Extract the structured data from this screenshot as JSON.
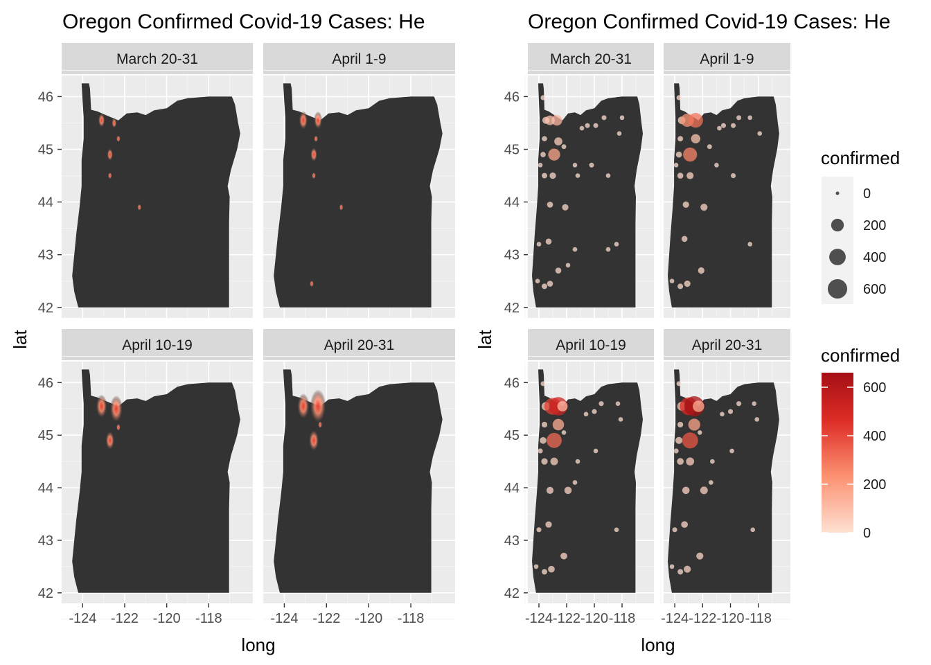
{
  "chart_data": [
    {
      "type": "heatmap",
      "title": "Oregon Confirmed Covid-19 Cases: He",
      "xlabel": "long",
      "ylabel": "lat",
      "xticks": [
        "-124",
        "-122",
        "-120",
        "-118"
      ],
      "yticks": [
        "42",
        "43",
        "44",
        "45",
        "46"
      ],
      "xlim": [
        -125.0,
        -115.9
      ],
      "ylim": [
        41.8,
        46.4
      ],
      "background_map": "Oregon",
      "panels": [
        {
          "label": "March 20-31",
          "hotspots": [
            {
              "long": -123.1,
              "lat": 45.55,
              "confirmed": 120
            },
            {
              "long": -122.5,
              "lat": 45.5,
              "confirmed": 60
            },
            {
              "long": -122.7,
              "lat": 44.9,
              "confirmed": 90
            },
            {
              "long": -122.3,
              "lat": 45.2,
              "confirmed": 25
            },
            {
              "long": -122.7,
              "lat": 44.5,
              "confirmed": 20
            },
            {
              "long": -121.3,
              "lat": 43.9,
              "confirmed": 8
            }
          ]
        },
        {
          "label": "April 1-9",
          "hotspots": [
            {
              "long": -123.1,
              "lat": 45.55,
              "confirmed": 200
            },
            {
              "long": -122.4,
              "lat": 45.55,
              "confirmed": 180
            },
            {
              "long": -122.6,
              "lat": 44.9,
              "confirmed": 120
            },
            {
              "long": -122.5,
              "lat": 45.2,
              "confirmed": 20
            },
            {
              "long": -122.6,
              "lat": 44.5,
              "confirmed": 15
            },
            {
              "long": -121.3,
              "lat": 43.9,
              "confirmed": 8
            },
            {
              "long": -122.7,
              "lat": 42.45,
              "confirmed": 8
            }
          ]
        },
        {
          "label": "April 10-19",
          "hotspots": [
            {
              "long": -123.1,
              "lat": 45.55,
              "confirmed": 320
            },
            {
              "long": -122.4,
              "lat": 45.5,
              "confirmed": 420
            },
            {
              "long": -122.7,
              "lat": 44.9,
              "confirmed": 200
            },
            {
              "long": -122.3,
              "lat": 45.15,
              "confirmed": 30
            }
          ]
        },
        {
          "label": "April 20-31",
          "hotspots": [
            {
              "long": -123.1,
              "lat": 45.55,
              "confirmed": 380
            },
            {
              "long": -122.4,
              "lat": 45.55,
              "confirmed": 650
            },
            {
              "long": -122.6,
              "lat": 44.9,
              "confirmed": 260
            },
            {
              "long": -122.3,
              "lat": 45.2,
              "confirmed": 30
            }
          ]
        }
      ]
    },
    {
      "type": "scatter",
      "title": "Oregon Confirmed Covid-19 Cases: He",
      "xlabel": "long",
      "ylabel": "lat",
      "xticks": [
        "-124",
        "-122",
        "-120",
        "-118"
      ],
      "yticks": [
        "42",
        "43",
        "44",
        "45",
        "46"
      ],
      "xlim": [
        -124.8,
        -115.7
      ],
      "ylim": [
        41.8,
        46.4
      ],
      "background_map": "Oregon",
      "size_legend": {
        "title": "confirmed",
        "levels": [
          {
            "value": 0,
            "label": "0"
          },
          {
            "value": 200,
            "label": "200"
          },
          {
            "value": 400,
            "label": "400"
          },
          {
            "value": 600,
            "label": "600"
          }
        ]
      },
      "color_legend": {
        "title": "confirmed",
        "low_color": "#fee0d2",
        "high_color": "#a50f15",
        "min": 0,
        "max": 660,
        "labels": [
          {
            "value": 600,
            "label": "600"
          },
          {
            "value": 400,
            "label": "400"
          },
          {
            "value": 200,
            "label": "200"
          },
          {
            "value": 0,
            "label": "0"
          }
        ]
      },
      "panels": [
        {
          "label": "March 20-31",
          "points": [
            {
              "long": -123.7,
              "lat": 45.98,
              "confirmed": 5
            },
            {
              "long": -123.5,
              "lat": 45.55,
              "confirmed": 30
            },
            {
              "long": -122.7,
              "lat": 45.55,
              "confirmed": 120
            },
            {
              "long": -123.2,
              "lat": 45.55,
              "confirmed": 90
            },
            {
              "long": -123.6,
              "lat": 45.2,
              "confirmed": 8
            },
            {
              "long": -122.6,
              "lat": 45.15,
              "confirmed": 50
            },
            {
              "long": -123.7,
              "lat": 44.9,
              "confirmed": 8
            },
            {
              "long": -122.9,
              "lat": 44.9,
              "confirmed": 170
            },
            {
              "long": -122.2,
              "lat": 45.05,
              "confirmed": 4
            },
            {
              "long": -123.9,
              "lat": 44.7,
              "confirmed": 3
            },
            {
              "long": -123.6,
              "lat": 44.5,
              "confirmed": 10
            },
            {
              "long": -123.0,
              "lat": 44.5,
              "confirmed": 20
            },
            {
              "long": -121.4,
              "lat": 44.7,
              "confirmed": 3
            },
            {
              "long": -120.9,
              "lat": 45.4,
              "confirmed": 3
            },
            {
              "long": -120.5,
              "lat": 45.45,
              "confirmed": 5
            },
            {
              "long": -119.9,
              "lat": 45.45,
              "confirmed": 5
            },
            {
              "long": -119.3,
              "lat": 45.6,
              "confirmed": 5
            },
            {
              "long": -120.2,
              "lat": 44.7,
              "confirmed": 5
            },
            {
              "long": -119.0,
              "lat": 44.5,
              "confirmed": 3
            },
            {
              "long": -118.0,
              "lat": 45.6,
              "confirmed": 3
            },
            {
              "long": -118.2,
              "lat": 45.3,
              "confirmed": 3
            },
            {
              "long": -121.2,
              "lat": 44.5,
              "confirmed": 3
            },
            {
              "long": -123.2,
              "lat": 43.95,
              "confirmed": 15
            },
            {
              "long": -122.1,
              "lat": 43.9,
              "confirmed": 20
            },
            {
              "long": -123.3,
              "lat": 43.25,
              "confirmed": 15
            },
            {
              "long": -124.0,
              "lat": 43.2,
              "confirmed": 3
            },
            {
              "long": -121.4,
              "lat": 43.1,
              "confirmed": 3
            },
            {
              "long": -119.0,
              "lat": 43.1,
              "confirmed": 3
            },
            {
              "long": -118.4,
              "lat": 43.2,
              "confirmed": 3
            },
            {
              "long": -122.6,
              "lat": 42.7,
              "confirmed": 15
            },
            {
              "long": -121.9,
              "lat": 42.8,
              "confirmed": 3
            },
            {
              "long": -124.1,
              "lat": 42.5,
              "confirmed": 3
            },
            {
              "long": -123.6,
              "lat": 42.4,
              "confirmed": 10
            },
            {
              "long": -123.2,
              "lat": 42.45,
              "confirmed": 15
            }
          ]
        },
        {
          "label": "April 1-9",
          "points": [
            {
              "long": -123.7,
              "lat": 45.98,
              "confirmed": 5
            },
            {
              "long": -123.5,
              "lat": 45.55,
              "confirmed": 40
            },
            {
              "long": -123.1,
              "lat": 45.55,
              "confirmed": 220
            },
            {
              "long": -122.5,
              "lat": 45.55,
              "confirmed": 300
            },
            {
              "long": -123.6,
              "lat": 45.2,
              "confirmed": 10
            },
            {
              "long": -122.5,
              "lat": 45.2,
              "confirmed": 80
            },
            {
              "long": -123.7,
              "lat": 44.9,
              "confirmed": 15
            },
            {
              "long": -122.9,
              "lat": 44.9,
              "confirmed": 260
            },
            {
              "long": -121.5,
              "lat": 45.05,
              "confirmed": 4
            },
            {
              "long": -123.9,
              "lat": 44.7,
              "confirmed": 3
            },
            {
              "long": -123.6,
              "lat": 44.5,
              "confirmed": 15
            },
            {
              "long": -122.9,
              "lat": 44.5,
              "confirmed": 30
            },
            {
              "long": -121.0,
              "lat": 44.7,
              "confirmed": 3
            },
            {
              "long": -120.8,
              "lat": 45.4,
              "confirmed": 3
            },
            {
              "long": -120.5,
              "lat": 45.45,
              "confirmed": 5
            },
            {
              "long": -119.8,
              "lat": 45.45,
              "confirmed": 5
            },
            {
              "long": -119.4,
              "lat": 45.6,
              "confirmed": 5
            },
            {
              "long": -119.8,
              "lat": 44.5,
              "confirmed": 5
            },
            {
              "long": -118.6,
              "lat": 45.6,
              "confirmed": 3
            },
            {
              "long": -117.9,
              "lat": 45.3,
              "confirmed": 3
            },
            {
              "long": -123.2,
              "lat": 43.95,
              "confirmed": 20
            },
            {
              "long": -121.9,
              "lat": 43.9,
              "confirmed": 30
            },
            {
              "long": -123.3,
              "lat": 43.3,
              "confirmed": 15
            },
            {
              "long": -122.1,
              "lat": 42.7,
              "confirmed": 20
            },
            {
              "long": -118.6,
              "lat": 43.2,
              "confirmed": 3
            },
            {
              "long": -124.2,
              "lat": 42.5,
              "confirmed": 3
            },
            {
              "long": -123.6,
              "lat": 42.4,
              "confirmed": 10
            },
            {
              "long": -123.1,
              "lat": 42.45,
              "confirmed": 20
            }
          ]
        },
        {
          "label": "April 10-19",
          "points": [
            {
              "long": -123.7,
              "lat": 45.98,
              "confirmed": 5
            },
            {
              "long": -123.5,
              "lat": 45.55,
              "confirmed": 60
            },
            {
              "long": -123.0,
              "lat": 45.55,
              "confirmed": 420
            },
            {
              "long": -122.6,
              "lat": 45.55,
              "confirmed": 520
            },
            {
              "long": -122.3,
              "lat": 45.55,
              "confirmed": 110
            },
            {
              "long": -123.6,
              "lat": 45.2,
              "confirmed": 12
            },
            {
              "long": -122.6,
              "lat": 45.2,
              "confirmed": 150
            },
            {
              "long": -123.7,
              "lat": 44.9,
              "confirmed": 25
            },
            {
              "long": -122.9,
              "lat": 44.9,
              "confirmed": 320
            },
            {
              "long": -122.2,
              "lat": 45.05,
              "confirmed": 3
            },
            {
              "long": -123.9,
              "lat": 44.7,
              "confirmed": 5
            },
            {
              "long": -123.6,
              "lat": 44.5,
              "confirmed": 20
            },
            {
              "long": -122.9,
              "lat": 44.5,
              "confirmed": 40
            },
            {
              "long": -121.2,
              "lat": 44.5,
              "confirmed": 3
            },
            {
              "long": -120.6,
              "lat": 45.4,
              "confirmed": 3
            },
            {
              "long": -120.0,
              "lat": 45.45,
              "confirmed": 5
            },
            {
              "long": -119.5,
              "lat": 45.6,
              "confirmed": 5
            },
            {
              "long": -118.3,
              "lat": 45.6,
              "confirmed": 3
            },
            {
              "long": -118.1,
              "lat": 45.3,
              "confirmed": 3
            },
            {
              "long": -119.9,
              "lat": 44.7,
              "confirmed": 3
            },
            {
              "long": -121.4,
              "lat": 44.1,
              "confirmed": 3
            },
            {
              "long": -123.2,
              "lat": 43.95,
              "confirmed": 30
            },
            {
              "long": -121.9,
              "lat": 43.95,
              "confirmed": 35
            },
            {
              "long": -123.3,
              "lat": 43.3,
              "confirmed": 20
            },
            {
              "long": -124.0,
              "lat": 43.2,
              "confirmed": 5
            },
            {
              "long": -122.2,
              "lat": 42.7,
              "confirmed": 25
            },
            {
              "long": -118.4,
              "lat": 43.2,
              "confirmed": 3
            },
            {
              "long": -124.2,
              "lat": 42.5,
              "confirmed": 3
            },
            {
              "long": -123.6,
              "lat": 42.4,
              "confirmed": 10
            },
            {
              "long": -123.1,
              "lat": 42.45,
              "confirmed": 25
            }
          ]
        },
        {
          "label": "April 20-31",
          "points": [
            {
              "long": -123.7,
              "lat": 45.98,
              "confirmed": 5
            },
            {
              "long": -123.5,
              "lat": 45.55,
              "confirmed": 70
            },
            {
              "long": -123.0,
              "lat": 45.55,
              "confirmed": 480
            },
            {
              "long": -122.6,
              "lat": 45.55,
              "confirmed": 650
            },
            {
              "long": -122.3,
              "lat": 45.55,
              "confirmed": 150
            },
            {
              "long": -123.6,
              "lat": 45.2,
              "confirmed": 12
            },
            {
              "long": -122.6,
              "lat": 45.2,
              "confirmed": 170
            },
            {
              "long": -123.7,
              "lat": 44.9,
              "confirmed": 30
            },
            {
              "long": -122.9,
              "lat": 44.9,
              "confirmed": 370
            },
            {
              "long": -122.2,
              "lat": 45.05,
              "confirmed": 3
            },
            {
              "long": -123.9,
              "lat": 44.7,
              "confirmed": 5
            },
            {
              "long": -123.6,
              "lat": 44.5,
              "confirmed": 25
            },
            {
              "long": -122.9,
              "lat": 44.5,
              "confirmed": 50
            },
            {
              "long": -121.3,
              "lat": 44.5,
              "confirmed": 3
            },
            {
              "long": -120.6,
              "lat": 45.4,
              "confirmed": 3
            },
            {
              "long": -120.0,
              "lat": 45.45,
              "confirmed": 5
            },
            {
              "long": -119.4,
              "lat": 45.6,
              "confirmed": 5
            },
            {
              "long": -118.3,
              "lat": 45.6,
              "confirmed": 3
            },
            {
              "long": -118.1,
              "lat": 45.3,
              "confirmed": 3
            },
            {
              "long": -119.9,
              "lat": 44.7,
              "confirmed": 3
            },
            {
              "long": -121.4,
              "lat": 44.1,
              "confirmed": 3
            },
            {
              "long": -123.2,
              "lat": 43.95,
              "confirmed": 35
            },
            {
              "long": -121.9,
              "lat": 43.95,
              "confirmed": 40
            },
            {
              "long": -123.3,
              "lat": 43.3,
              "confirmed": 25
            },
            {
              "long": -124.0,
              "lat": 43.2,
              "confirmed": 5
            },
            {
              "long": -122.2,
              "lat": 42.7,
              "confirmed": 30
            },
            {
              "long": -118.4,
              "lat": 43.2,
              "confirmed": 3
            },
            {
              "long": -124.2,
              "lat": 42.5,
              "confirmed": 3
            },
            {
              "long": -123.6,
              "lat": 42.4,
              "confirmed": 10
            },
            {
              "long": -123.1,
              "lat": 42.45,
              "confirmed": 30
            }
          ]
        }
      ]
    }
  ],
  "colors": {
    "panel_bg": "#ebebeb",
    "strip_bg": "#d9d9d9",
    "map_fill": "#333333",
    "gridline": "#ffffff"
  }
}
